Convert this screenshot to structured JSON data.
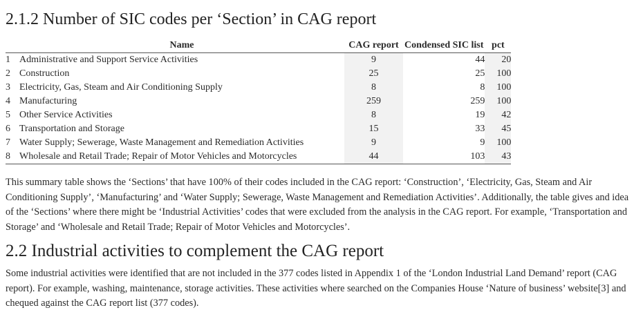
{
  "section_1": {
    "title": "2.1.2 Number of SIC codes per ‘Section’ in CAG report"
  },
  "table": {
    "headers": {
      "idx": "",
      "name": "Name",
      "cag": "CAG report",
      "condensed": "Condensed SIC list",
      "pct": "pct"
    },
    "rows": [
      {
        "idx": "1",
        "name": "Administrative and Support Service Activities",
        "cag": "9",
        "condensed": "44",
        "pct": "20"
      },
      {
        "idx": "2",
        "name": "Construction",
        "cag": "25",
        "condensed": "25",
        "pct": "100"
      },
      {
        "idx": "3",
        "name": "Electricity, Gas, Steam and Air Conditioning Supply",
        "cag": "8",
        "condensed": "8",
        "pct": "100"
      },
      {
        "idx": "4",
        "name": "Manufacturing",
        "cag": "259",
        "condensed": "259",
        "pct": "100"
      },
      {
        "idx": "5",
        "name": "Other Service Activities",
        "cag": "8",
        "condensed": "19",
        "pct": "42"
      },
      {
        "idx": "6",
        "name": "Transportation and Storage",
        "cag": "15",
        "condensed": "33",
        "pct": "45"
      },
      {
        "idx": "7",
        "name": "Water Supply; Sewerage, Waste Management and Remediation Activities",
        "cag": "9",
        "condensed": "9",
        "pct": "100"
      },
      {
        "idx": "8",
        "name": "Wholesale and Retail Trade; Repair of Motor Vehicles and Motorcycles",
        "cag": "44",
        "condensed": "103",
        "pct": "43"
      }
    ]
  },
  "paragraph_1": "This summary table shows the ‘Sections’ that have 100% of their codes included in the CAG report: ‘Construction’, ‘Electricity, Gas, Steam and Air Conditioning Supply’, ‘Manufacturing’ and ‘Water Supply; Sewerage, Waste Management and Remediation Activities’. Additionally, the table gives and idea of the ‘Sections’ where there might be ‘Industrial Activities’ codes that were excluded from the analysis in the CAG report. For example, ‘Transportation and Storage’ and ‘Wholesale and Retail Trade; Repair of Motor Vehicles and Motorcycles’.",
  "section_2": {
    "title": "2.2 Industrial activities to complement the CAG report"
  },
  "paragraph_2": "Some industrial activities were identified that are not included in the 377 codes listed in Appendix 1 of the ‘London Industrial Land Demand’ report (CAG report). For example, washing, maintenance, storage activities. These activities where searched on the Companies House ‘Nature of business’ website[3] and chequed against the CAG report list (377 codes)."
}
